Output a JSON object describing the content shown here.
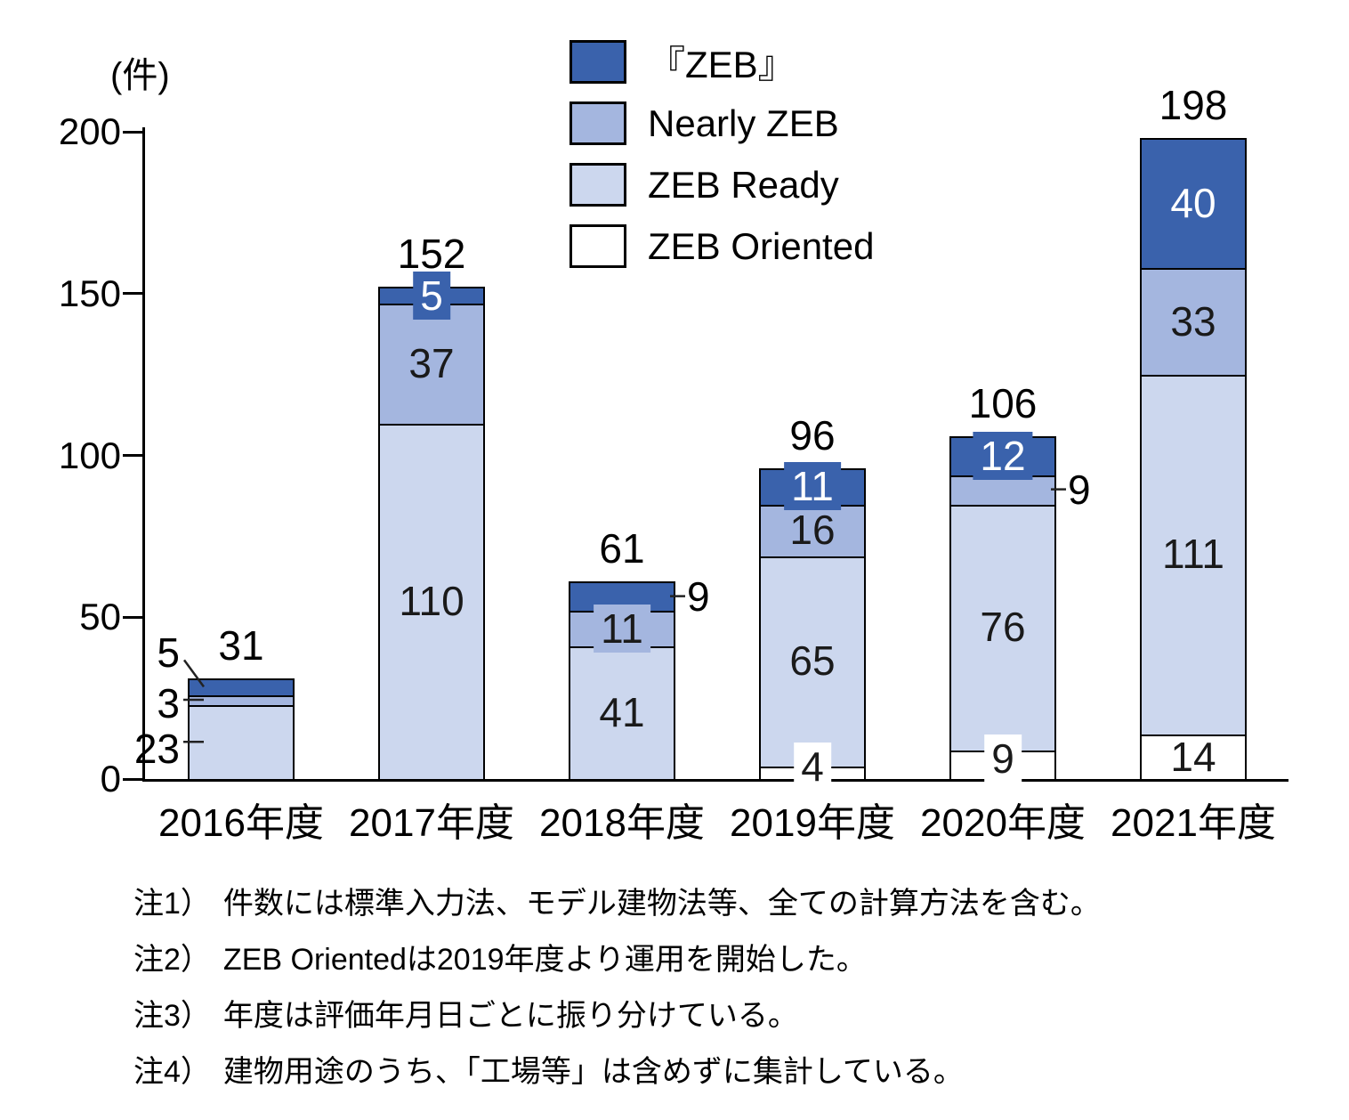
{
  "unit_label": "(件)",
  "chart_data": {
    "type": "bar",
    "stacked": true,
    "unit": "件",
    "ylim": [
      0,
      200
    ],
    "y_ticks": [
      0,
      50,
      100,
      150,
      200
    ],
    "grid": false,
    "legend_position": "top-center",
    "categories": [
      "2016年度",
      "2017年度",
      "2018年度",
      "2019年度",
      "2020年度",
      "2021年度"
    ],
    "legend": [
      {
        "label": "『ZEB』",
        "color": "#3A62AC"
      },
      {
        "label": "Nearly ZEB",
        "color": "#A4B6DF"
      },
      {
        "label": "ZEB Ready",
        "color": "#CCD7EE"
      },
      {
        "label": "ZEB Oriented",
        "color": "#FFFFFF"
      }
    ],
    "series_order_bottom_to_top": [
      "ZEB Oriented",
      "ZEB Ready",
      "Nearly ZEB",
      "『ZEB』"
    ],
    "series": [
      {
        "name": "『ZEB』",
        "color": "#3A62AC",
        "label_color": "#FFFFFF",
        "values": [
          5,
          5,
          9,
          11,
          12,
          40
        ],
        "label_placements": [
          "left",
          "badge",
          "right",
          "badge",
          "badge",
          "inside"
        ]
      },
      {
        "name": "Nearly ZEB",
        "color": "#A4B6DF",
        "label_color": "#1A1A1A",
        "values": [
          3,
          37,
          11,
          16,
          9,
          33
        ],
        "label_placements": [
          "left",
          "inside",
          "badge",
          "inside",
          "right",
          "inside"
        ]
      },
      {
        "name": "ZEB Ready",
        "color": "#CCD7EE",
        "label_color": "#1A1A1A",
        "values": [
          23,
          110,
          41,
          65,
          76,
          111
        ],
        "label_placements": [
          "left",
          "inside",
          "inside",
          "inside",
          "inside",
          "inside"
        ]
      },
      {
        "name": "ZEB Oriented",
        "color": "#FFFFFF",
        "label_color": "#1A1A1A",
        "values": [
          0,
          0,
          0,
          4,
          9,
          14
        ],
        "label_placements": [
          null,
          null,
          null,
          "badge",
          "badge",
          "inside"
        ]
      }
    ],
    "totals": [
      31,
      152,
      61,
      96,
      106,
      198
    ]
  },
  "notes": [
    {
      "label": "注1）",
      "text": "件数には標準入力法、モデル建物法等、全ての計算方法を含む。"
    },
    {
      "label": "注2）",
      "text": "ZEB Orientedは2019年度より運用を開始した。"
    },
    {
      "label": "注3）",
      "text": "年度は評価年月日ごとに振り分けている。"
    },
    {
      "label": "注4）",
      "text": "建物用途のうち、「工場等」は含めずに集計している。"
    }
  ]
}
